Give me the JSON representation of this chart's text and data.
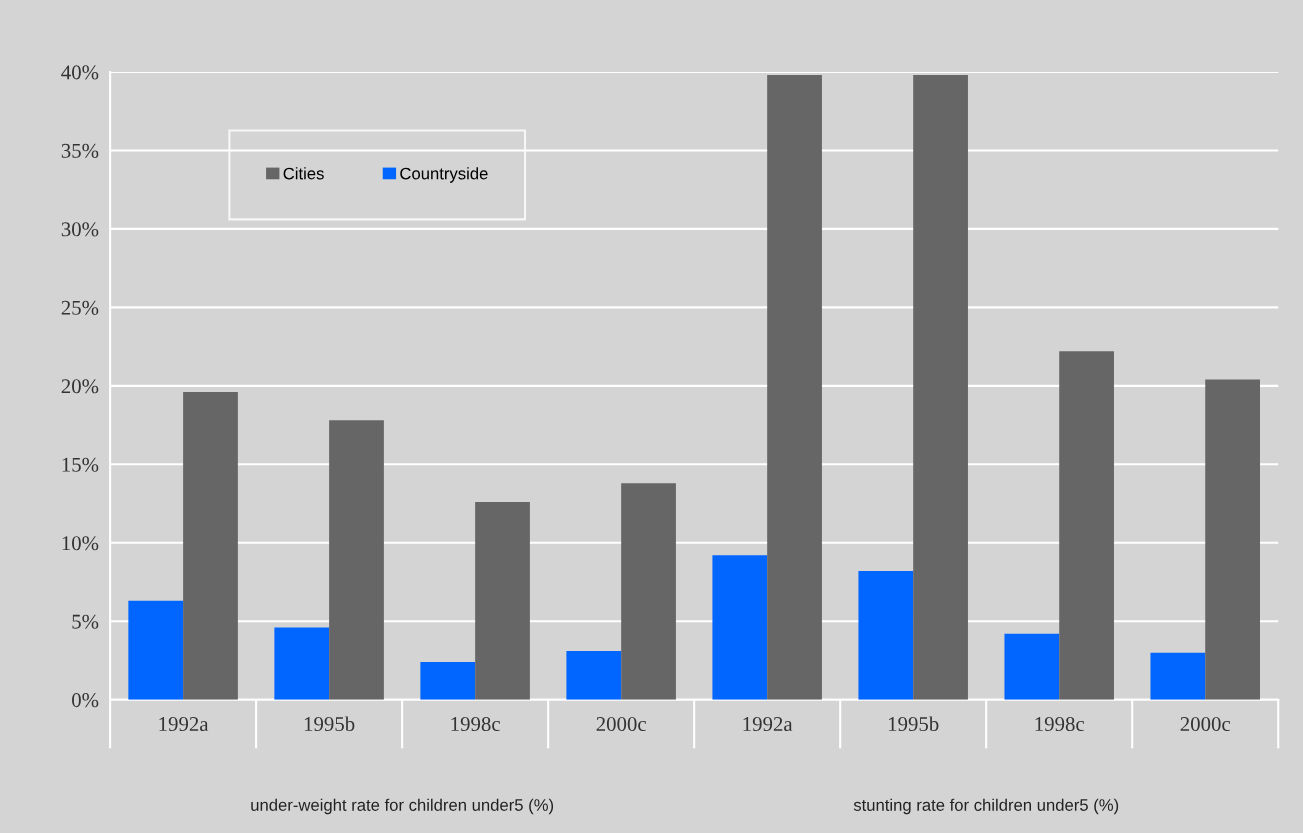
{
  "chart_data": {
    "type": "bar",
    "categories": [
      "1992a",
      "1995b",
      "1998c",
      "2000c",
      "1992a",
      "1995b",
      "1998c",
      "2000c"
    ],
    "series": [
      {
        "name": "Countryside",
        "color": "#0066ff",
        "values": [
          6.3,
          4.6,
          2.4,
          3.1,
          9.2,
          8.2,
          4.2,
          3.0
        ]
      },
      {
        "name": "Cities",
        "color": "#666666",
        "values": [
          19.6,
          17.8,
          12.6,
          13.8,
          39.8,
          39.8,
          22.2,
          20.4
        ]
      }
    ],
    "ylim": [
      0,
      40
    ],
    "yticks": [
      {
        "value": 0,
        "label": "0%"
      },
      {
        "value": 5,
        "label": "5%"
      },
      {
        "value": 10,
        "label": "10%"
      },
      {
        "value": 15,
        "label": "15%"
      },
      {
        "value": 20,
        "label": "20%"
      },
      {
        "value": 25,
        "label": "25%"
      },
      {
        "value": 30,
        "label": "30%"
      },
      {
        "value": 35,
        "label": "35%"
      },
      {
        "value": 40,
        "label": "40%"
      }
    ],
    "annotations": [
      "under-weight rate for children under5 (%)",
      "stunting rate for children under5 (%)"
    ],
    "grid": "y",
    "legend": "top left"
  }
}
